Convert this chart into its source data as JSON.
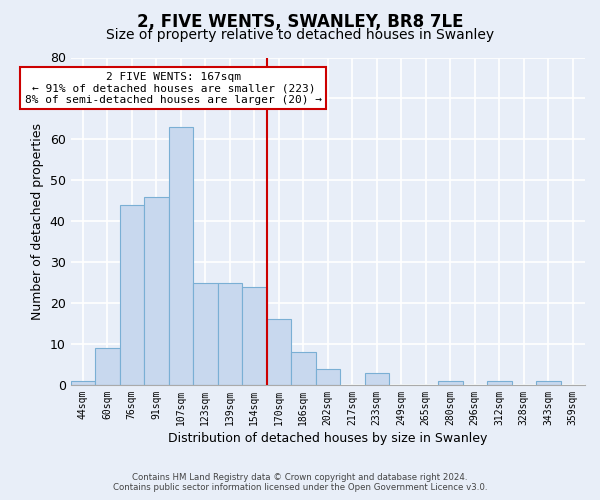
{
  "title": "2, FIVE WENTS, SWANLEY, BR8 7LE",
  "subtitle": "Size of property relative to detached houses in Swanley",
  "xlabel": "Distribution of detached houses by size in Swanley",
  "ylabel": "Number of detached properties",
  "bin_labels": [
    "44sqm",
    "60sqm",
    "76sqm",
    "91sqm",
    "107sqm",
    "123sqm",
    "139sqm",
    "154sqm",
    "170sqm",
    "186sqm",
    "202sqm",
    "217sqm",
    "233sqm",
    "249sqm",
    "265sqm",
    "280sqm",
    "296sqm",
    "312sqm",
    "328sqm",
    "343sqm",
    "359sqm"
  ],
  "bar_values": [
    1,
    9,
    44,
    46,
    63,
    25,
    25,
    24,
    16,
    8,
    4,
    0,
    3,
    0,
    0,
    1,
    0,
    1,
    0,
    1,
    0
  ],
  "bar_color": "#c8d8ee",
  "bar_edge_color": "#7aafd4",
  "property_line_color": "#cc0000",
  "ylim": [
    0,
    80
  ],
  "yticks": [
    0,
    10,
    20,
    30,
    40,
    50,
    60,
    70,
    80
  ],
  "annotation_title": "2 FIVE WENTS: 167sqm",
  "annotation_line1": "← 91% of detached houses are smaller (223)",
  "annotation_line2": "8% of semi-detached houses are larger (20) →",
  "annotation_box_color": "#ffffff",
  "annotation_box_edge": "#cc0000",
  "footer_line1": "Contains HM Land Registry data © Crown copyright and database right 2024.",
  "footer_line2": "Contains public sector information licensed under the Open Government Licence v3.0.",
  "background_color": "#e8eef8",
  "plot_background": "#e8eef8",
  "grid_color": "#ffffff",
  "title_fontsize": 12,
  "subtitle_fontsize": 10
}
